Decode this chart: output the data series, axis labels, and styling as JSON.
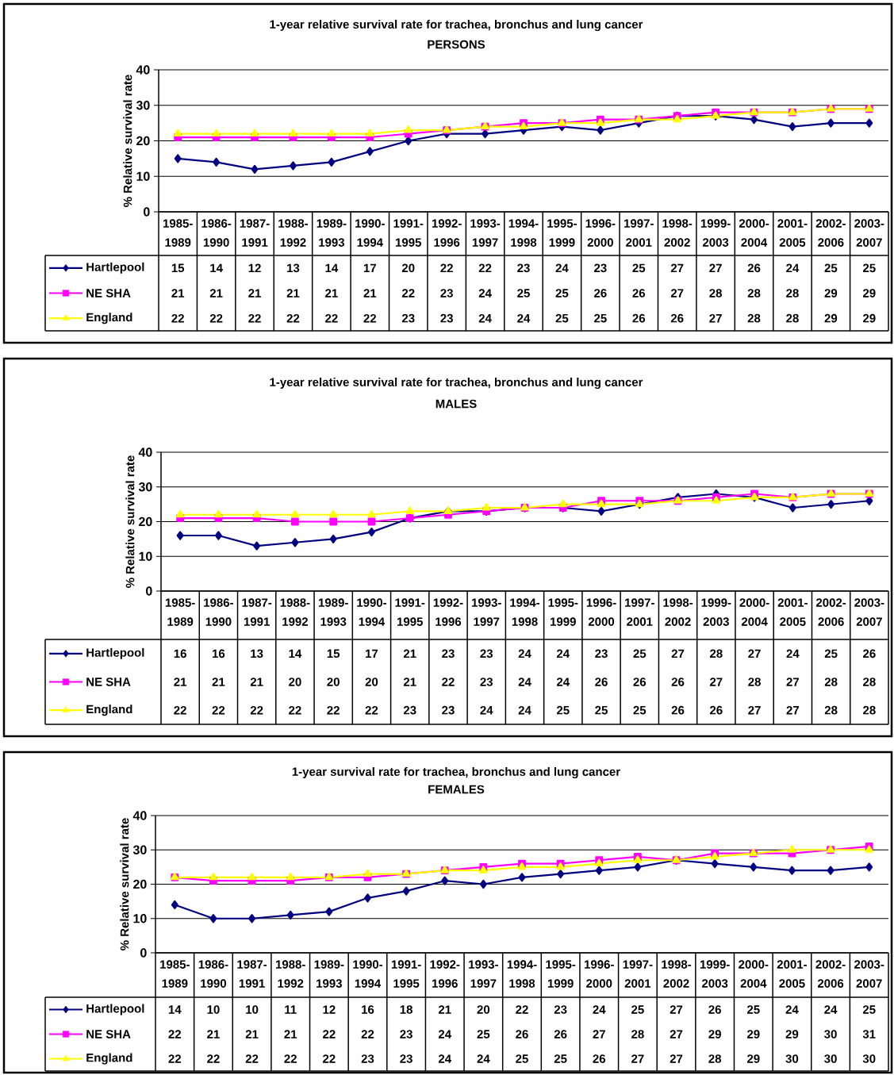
{
  "chart_data": [
    {
      "type": "line",
      "title": "1-year relative survival rate for trachea, bronchus and lung cancer",
      "subtitle": "PERSONS",
      "ylabel": "% Relative survival rate",
      "categories": [
        "1985-1989",
        "1986-1990",
        "1987-1991",
        "1988-1992",
        "1989-1993",
        "1990-1994",
        "1991-1995",
        "1992-1996",
        "1993-1997",
        "1994-1998",
        "1995-1999",
        "1996-2000",
        "1997-2001",
        "1998-2002",
        "1999-2003",
        "2000-2004",
        "2001-2005",
        "2002-2006",
        "2003-2007"
      ],
      "series": [
        {
          "name": "Hartlepool",
          "color": "#000080",
          "marker": "diamond",
          "values": [
            15,
            14,
            12,
            13,
            14,
            17,
            20,
            22,
            22,
            23,
            24,
            23,
            25,
            27,
            27,
            26,
            24,
            25,
            25
          ]
        },
        {
          "name": "NE SHA",
          "color": "#ff00ff",
          "marker": "square",
          "values": [
            21,
            21,
            21,
            21,
            21,
            21,
            22,
            23,
            24,
            25,
            25,
            26,
            26,
            27,
            28,
            28,
            28,
            29,
            29
          ]
        },
        {
          "name": "England",
          "color": "#ffff00",
          "marker": "triangle",
          "values": [
            22,
            22,
            22,
            22,
            22,
            22,
            23,
            23,
            24,
            24,
            25,
            25,
            26,
            26,
            27,
            28,
            28,
            29,
            29
          ]
        }
      ],
      "ylim": [
        0,
        40
      ],
      "yticks": [
        0,
        10,
        20,
        30,
        40
      ],
      "grid": "y",
      "legend": "bottom",
      "data_labels": true,
      "line_style": "solid"
    },
    {
      "type": "line",
      "title": "1-year relative survival rate for trachea, bronchus and lung cancer",
      "subtitle": "MALES",
      "ylabel": "% Relative survival rate",
      "categories": [
        "1985-1989",
        "1986-1990",
        "1987-1991",
        "1988-1992",
        "1989-1993",
        "1990-1994",
        "1991-1995",
        "1992-1996",
        "1993-1997",
        "1994-1998",
        "1995-1999",
        "1996-2000",
        "1997-2001",
        "1998-2002",
        "1999-2003",
        "2000-2004",
        "2001-2005",
        "2002-2006",
        "2003-2007"
      ],
      "series": [
        {
          "name": "Hartlepool",
          "color": "#000080",
          "marker": "diamond",
          "values": [
            16,
            16,
            13,
            14,
            15,
            17,
            21,
            23,
            23,
            24,
            24,
            23,
            25,
            27,
            28,
            27,
            24,
            25,
            26
          ]
        },
        {
          "name": "NE SHA",
          "color": "#ff00ff",
          "marker": "square",
          "values": [
            21,
            21,
            21,
            20,
            20,
            20,
            21,
            22,
            23,
            24,
            24,
            26,
            26,
            26,
            27,
            28,
            27,
            28,
            28
          ]
        },
        {
          "name": "England",
          "color": "#ffff00",
          "marker": "triangle",
          "values": [
            22,
            22,
            22,
            22,
            22,
            22,
            23,
            23,
            24,
            24,
            25,
            25,
            25,
            26,
            26,
            27,
            27,
            28,
            28
          ]
        }
      ],
      "ylim": [
        0,
        40
      ],
      "yticks": [
        0,
        10,
        20,
        30,
        40
      ],
      "grid": "y",
      "legend": "bottom",
      "data_labels": true,
      "line_style": "solid"
    },
    {
      "type": "line",
      "title": "1-year survival rate for trachea, bronchus and lung cancer",
      "subtitle": "FEMALES",
      "ylabel": "% Relative survival rate",
      "categories": [
        "1985-1989",
        "1986-1990",
        "1987-1991",
        "1988-1992",
        "1989-1993",
        "1990-1994",
        "1991-1995",
        "1992-1996",
        "1993-1997",
        "1994-1998",
        "1995-1999",
        "1996-2000",
        "1997-2001",
        "1998-2002",
        "1999-2003",
        "2000-2004",
        "2001-2005",
        "2002-2006",
        "2003-2007"
      ],
      "series": [
        {
          "name": "Hartlepool",
          "color": "#000080",
          "marker": "diamond",
          "values": [
            14,
            10,
            10,
            11,
            12,
            16,
            18,
            21,
            20,
            22,
            23,
            24,
            25,
            27,
            26,
            25,
            24,
            24,
            25
          ]
        },
        {
          "name": "NE SHA",
          "color": "#ff00ff",
          "marker": "square",
          "values": [
            22,
            21,
            21,
            21,
            22,
            22,
            23,
            24,
            25,
            26,
            26,
            27,
            28,
            27,
            29,
            29,
            29,
            30,
            31
          ]
        },
        {
          "name": "England",
          "color": "#ffff00",
          "marker": "triangle",
          "values": [
            22,
            22,
            22,
            22,
            22,
            23,
            23,
            24,
            24,
            25,
            25,
            26,
            27,
            27,
            28,
            29,
            30,
            30,
            30
          ]
        }
      ],
      "ylim": [
        0,
        40
      ],
      "yticks": [
        0,
        10,
        20,
        30,
        40
      ],
      "grid": "y",
      "legend": "bottom",
      "data_labels": true,
      "line_style": "solid"
    }
  ]
}
